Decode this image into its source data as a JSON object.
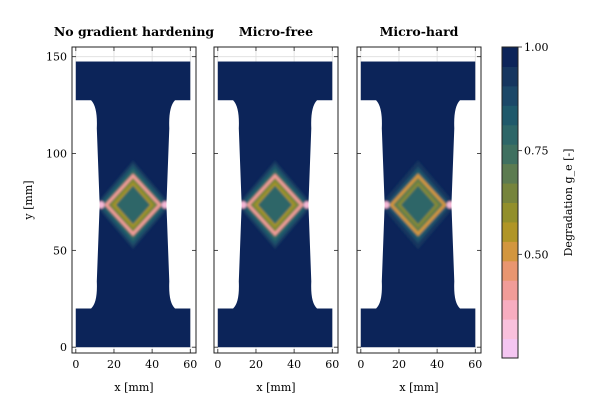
{
  "chart_data": {
    "type": "heatmap",
    "panels": [
      {
        "title": "No gradient hardening",
        "xlabel": "x [mm]",
        "ylabel": "y [mm]",
        "core_min": 0.35
      },
      {
        "title": "Micro-free",
        "xlabel": "x [mm]",
        "ylabel": "",
        "core_min": 0.35
      },
      {
        "title": "Micro-hard",
        "xlabel": "x [mm]",
        "ylabel": "",
        "core_min": 0.45
      }
    ],
    "xlim": [
      -2,
      63
    ],
    "ylim": [
      -3,
      155
    ],
    "x_ticks": [
      0,
      20,
      40,
      60
    ],
    "y_ticks": [
      0,
      50,
      100,
      150
    ],
    "specimen": {
      "width": 60,
      "height": 147.5,
      "neck_x": [
        12,
        48
      ]
    },
    "colorbar": {
      "label": "Degradation g_e [-]",
      "range": [
        0.25,
        1.0
      ],
      "ticks": [
        0.5,
        0.75,
        1.0
      ],
      "tick_labels": [
        "0.50",
        "0.75",
        "1.00"
      ],
      "colors": [
        "#f4c6f1",
        "#f9c1dc",
        "#f7adc0",
        "#f19c98",
        "#e99670",
        "#d3963e",
        "#b09526",
        "#928f2b",
        "#76843c",
        "#5c7b50",
        "#3f7060",
        "#2d6668",
        "#1f596b",
        "#1c4868",
        "#16365f",
        "#0c2459"
      ]
    },
    "grid": true
  }
}
